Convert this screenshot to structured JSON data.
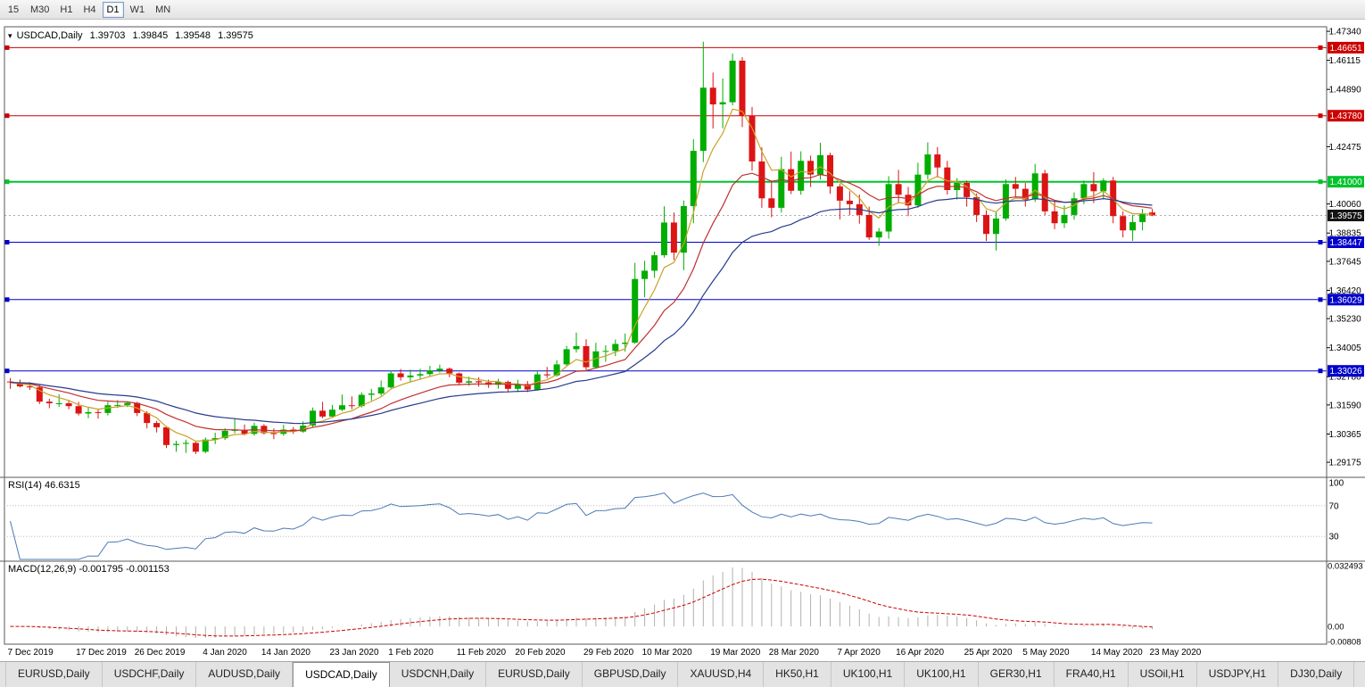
{
  "toolbar": {
    "timeframes": [
      "15",
      "M30",
      "H1",
      "H4",
      "D1",
      "W1",
      "MN"
    ],
    "active": "D1"
  },
  "chart_title": {
    "symbol": "USDCAD,Daily",
    "open": "1.39703",
    "high": "1.39845",
    "low": "1.39548",
    "close": "1.39575"
  },
  "chart_data": {
    "type": "candlestick",
    "symbol": "USDCAD",
    "period": "Daily",
    "colors": {
      "up": "#00ad00",
      "down": "#dc1414",
      "background": "#ffffff",
      "frame": "#5a5a5a",
      "axis_text": "#000000",
      "current_price_tag": "#141414",
      "grid_dotted": "#aaaaaa"
    },
    "price_axis": {
      "min": 1.2854,
      "max": 1.4753,
      "current_price": "1.39575",
      "current_price_value": 1.39575,
      "ticks": [
        "1.47340",
        "1.46115",
        "1.44890",
        "1.42475",
        "1.40060",
        "1.38835",
        "1.37645",
        "1.36420",
        "1.35230",
        "1.34005",
        "1.32780",
        "1.31590",
        "1.30365",
        "1.29175"
      ]
    },
    "sr_lines": [
      {
        "value": 1.46651,
        "label": "1.46651",
        "color": "#cc0000",
        "width": 1
      },
      {
        "value": 1.4378,
        "label": "1.43780",
        "color": "#cc0000",
        "width": 1
      },
      {
        "value": 1.41,
        "label": "1.41000",
        "color": "#00c22e",
        "width": 2
      },
      {
        "value": 1.38447,
        "label": "1.38447",
        "color": "#0000cc",
        "width": 1
      },
      {
        "value": 1.36029,
        "label": "1.36029",
        "color": "#0000cc",
        "width": 1
      },
      {
        "value": 1.33026,
        "label": "1.33026",
        "color": "#0000cc",
        "width": 1
      }
    ],
    "x_labels": [
      {
        "text": "7 Dec 2019",
        "bar": 0
      },
      {
        "text": "17 Dec 2019",
        "bar": 7
      },
      {
        "text": "26 Dec 2019",
        "bar": 13
      },
      {
        "text": "4 Jan 2020",
        "bar": 20
      },
      {
        "text": "14 Jan 2020",
        "bar": 26
      },
      {
        "text": "23 Jan 2020",
        "bar": 33
      },
      {
        "text": "1 Feb 2020",
        "bar": 39
      },
      {
        "text": "11 Feb 2020",
        "bar": 46
      },
      {
        "text": "20 Feb 2020",
        "bar": 52
      },
      {
        "text": "29 Feb 2020",
        "bar": 59
      },
      {
        "text": "10 Mar 2020",
        "bar": 65
      },
      {
        "text": "19 Mar 2020",
        "bar": 72
      },
      {
        "text": "28 Mar 2020",
        "bar": 78
      },
      {
        "text": "7 Apr 2020",
        "bar": 85
      },
      {
        "text": "16 Apr 2020",
        "bar": 91
      },
      {
        "text": "25 Apr 2020",
        "bar": 98
      },
      {
        "text": "5 May 2020",
        "bar": 104
      },
      {
        "text": "14 May 2020",
        "bar": 111
      },
      {
        "text": "23 May 2020",
        "bar": 117
      }
    ],
    "candles": [
      [
        1.3258,
        1.3272,
        1.3227,
        1.3254
      ],
      [
        1.3254,
        1.3266,
        1.3233,
        1.3237
      ],
      [
        1.3237,
        1.3255,
        1.3222,
        1.3233
      ],
      [
        1.3233,
        1.3245,
        1.3163,
        1.3173
      ],
      [
        1.3173,
        1.3185,
        1.3145,
        1.3166
      ],
      [
        1.3166,
        1.3204,
        1.3151,
        1.3166
      ],
      [
        1.3166,
        1.318,
        1.3141,
        1.3154
      ],
      [
        1.3154,
        1.3172,
        1.3115,
        1.3123
      ],
      [
        1.3123,
        1.315,
        1.3103,
        1.3129
      ],
      [
        1.3129,
        1.314,
        1.3101,
        1.3125
      ],
      [
        1.3125,
        1.3172,
        1.3115,
        1.3158
      ],
      [
        1.3158,
        1.318,
        1.3146,
        1.3159
      ],
      [
        1.3159,
        1.3174,
        1.315,
        1.3168
      ],
      [
        1.3168,
        1.3172,
        1.3112,
        1.3125
      ],
      [
        1.3125,
        1.3133,
        1.306,
        1.3083
      ],
      [
        1.3083,
        1.3092,
        1.3043,
        1.3065
      ],
      [
        1.3065,
        1.307,
        1.2977,
        1.299
      ],
      [
        1.299,
        1.3008,
        1.2962,
        1.2995
      ],
      [
        1.2995,
        1.3013,
        1.2957,
        1.2999
      ],
      [
        1.2999,
        1.3004,
        1.2952,
        1.2962
      ],
      [
        1.2962,
        1.3022,
        1.2955,
        1.3013
      ],
      [
        1.3013,
        1.3042,
        1.2994,
        1.3019
      ],
      [
        1.3019,
        1.3061,
        1.3012,
        1.305
      ],
      [
        1.305,
        1.3103,
        1.304,
        1.3054
      ],
      [
        1.3054,
        1.3077,
        1.3031,
        1.3037
      ],
      [
        1.3037,
        1.3084,
        1.303,
        1.3071
      ],
      [
        1.3071,
        1.3078,
        1.3035,
        1.304
      ],
      [
        1.304,
        1.306,
        1.3015,
        1.3037
      ],
      [
        1.3037,
        1.3075,
        1.3029,
        1.3055
      ],
      [
        1.3055,
        1.3066,
        1.3037,
        1.3047
      ],
      [
        1.3047,
        1.309,
        1.3042,
        1.3072
      ],
      [
        1.3072,
        1.3148,
        1.3066,
        1.3135
      ],
      [
        1.3135,
        1.3172,
        1.3103,
        1.311
      ],
      [
        1.311,
        1.3159,
        1.3104,
        1.3139
      ],
      [
        1.3139,
        1.3203,
        1.3133,
        1.3158
      ],
      [
        1.3158,
        1.3195,
        1.3141,
        1.3154
      ],
      [
        1.3154,
        1.3212,
        1.3148,
        1.3202
      ],
      [
        1.3202,
        1.3227,
        1.3177,
        1.3207
      ],
      [
        1.3207,
        1.3262,
        1.3198,
        1.3233
      ],
      [
        1.3233,
        1.3303,
        1.3229,
        1.3292
      ],
      [
        1.3292,
        1.3311,
        1.3262,
        1.3276
      ],
      [
        1.3276,
        1.3308,
        1.3254,
        1.3283
      ],
      [
        1.3283,
        1.3312,
        1.3267,
        1.3289
      ],
      [
        1.3289,
        1.3324,
        1.3277,
        1.3304
      ],
      [
        1.3304,
        1.3329,
        1.3296,
        1.3312
      ],
      [
        1.3312,
        1.3317,
        1.3276,
        1.3292
      ],
      [
        1.3292,
        1.3296,
        1.3242,
        1.3253
      ],
      [
        1.3253,
        1.3278,
        1.324,
        1.3259
      ],
      [
        1.3259,
        1.3276,
        1.3236,
        1.3254
      ],
      [
        1.3254,
        1.3266,
        1.3231,
        1.3244
      ],
      [
        1.3244,
        1.3269,
        1.3227,
        1.3256
      ],
      [
        1.3256,
        1.3262,
        1.3212,
        1.3227
      ],
      [
        1.3227,
        1.3265,
        1.3213,
        1.3247
      ],
      [
        1.3247,
        1.326,
        1.3213,
        1.3224
      ],
      [
        1.3224,
        1.3302,
        1.3219,
        1.3288
      ],
      [
        1.3288,
        1.3319,
        1.3272,
        1.3284
      ],
      [
        1.3284,
        1.3348,
        1.3278,
        1.333
      ],
      [
        1.333,
        1.3408,
        1.3322,
        1.3394
      ],
      [
        1.3394,
        1.3464,
        1.338,
        1.3407
      ],
      [
        1.3407,
        1.3436,
        1.3305,
        1.3318
      ],
      [
        1.3318,
        1.3421,
        1.3312,
        1.3385
      ],
      [
        1.3385,
        1.3411,
        1.3341,
        1.3387
      ],
      [
        1.3387,
        1.3435,
        1.3365,
        1.3416
      ],
      [
        1.3416,
        1.346,
        1.3384,
        1.3422
      ],
      [
        1.3422,
        1.3758,
        1.3416,
        1.369
      ],
      [
        1.369,
        1.3767,
        1.3613,
        1.3725
      ],
      [
        1.3725,
        1.3805,
        1.3695,
        1.379
      ],
      [
        1.379,
        1.3996,
        1.378,
        1.3928
      ],
      [
        1.3928,
        1.397,
        1.377,
        1.3801
      ],
      [
        1.3801,
        1.4021,
        1.3727,
        1.3997
      ],
      [
        1.3997,
        1.4279,
        1.3925,
        1.423
      ],
      [
        1.423,
        1.469,
        1.4183,
        1.4496
      ],
      [
        1.4496,
        1.456,
        1.4324,
        1.4426
      ],
      [
        1.4426,
        1.4535,
        1.4325,
        1.4435
      ],
      [
        1.4435,
        1.464,
        1.4422,
        1.461
      ],
      [
        1.461,
        1.4625,
        1.433,
        1.4378
      ],
      [
        1.4378,
        1.4415,
        1.4147,
        1.4185
      ],
      [
        1.4185,
        1.4245,
        1.399,
        1.403
      ],
      [
        1.403,
        1.4105,
        1.395,
        1.399
      ],
      [
        1.399,
        1.4205,
        1.397,
        1.4153
      ],
      [
        1.4153,
        1.4227,
        1.4048,
        1.4062
      ],
      [
        1.4062,
        1.4228,
        1.4045,
        1.4188
      ],
      [
        1.4188,
        1.421,
        1.4078,
        1.413
      ],
      [
        1.413,
        1.4264,
        1.4109,
        1.4212
      ],
      [
        1.4212,
        1.4222,
        1.4049,
        1.408
      ],
      [
        1.408,
        1.409,
        1.3941,
        1.402
      ],
      [
        1.402,
        1.406,
        1.3959,
        1.4005
      ],
      [
        1.4005,
        1.4046,
        1.3923,
        1.396
      ],
      [
        1.396,
        1.3995,
        1.3855,
        1.3865
      ],
      [
        1.3865,
        1.3905,
        1.383,
        1.389
      ],
      [
        1.389,
        1.4123,
        1.386,
        1.409
      ],
      [
        1.409,
        1.415,
        1.401,
        1.4045
      ],
      [
        1.4045,
        1.4078,
        1.3955,
        1.4
      ],
      [
        1.4,
        1.418,
        1.399,
        1.413
      ],
      [
        1.413,
        1.4266,
        1.411,
        1.4215
      ],
      [
        1.4215,
        1.4246,
        1.4118,
        1.416
      ],
      [
        1.416,
        1.4188,
        1.4046,
        1.4065
      ],
      [
        1.4065,
        1.4115,
        1.4025,
        1.4095
      ],
      [
        1.4095,
        1.4105,
        1.3995,
        1.4035
      ],
      [
        1.4035,
        1.405,
        1.393,
        1.396
      ],
      [
        1.396,
        1.398,
        1.385,
        1.388
      ],
      [
        1.388,
        1.3975,
        1.381,
        1.3945
      ],
      [
        1.3945,
        1.411,
        1.3935,
        1.409
      ],
      [
        1.409,
        1.412,
        1.4035,
        1.407
      ],
      [
        1.407,
        1.4095,
        1.3995,
        1.4025
      ],
      [
        1.4025,
        1.4175,
        1.4015,
        1.4135
      ],
      [
        1.4135,
        1.415,
        1.396,
        1.3975
      ],
      [
        1.3975,
        1.402,
        1.39,
        1.3925
      ],
      [
        1.3925,
        1.4,
        1.3905,
        1.396
      ],
      [
        1.396,
        1.4055,
        1.394,
        1.403
      ],
      [
        1.403,
        1.4105,
        1.4005,
        1.409
      ],
      [
        1.409,
        1.414,
        1.401,
        1.406
      ],
      [
        1.406,
        1.4115,
        1.4025,
        1.4105
      ],
      [
        1.4105,
        1.412,
        1.3925,
        1.3955
      ],
      [
        1.3955,
        1.3975,
        1.3865,
        1.3895
      ],
      [
        1.3895,
        1.396,
        1.385,
        1.393
      ],
      [
        1.393,
        1.3985,
        1.3895,
        1.3965
      ],
      [
        1.39703,
        1.39845,
        1.39548,
        1.39575
      ]
    ],
    "overlays": [
      {
        "name": "ma-fast",
        "period": 5,
        "color": "#c9a227"
      },
      {
        "name": "ma-medium",
        "period": 13,
        "color": "#c03030"
      },
      {
        "name": "ma-slow",
        "period": 26,
        "color": "#283c8c"
      }
    ],
    "indicators": {
      "rsi": {
        "label": "RSI(14) 46.6315",
        "period": 14,
        "value": 46.6315,
        "color": "#4a7ab5",
        "levels": [
          70,
          30
        ],
        "range": [
          0,
          100
        ],
        "scale_ticks": [
          {
            "text": "100",
            "value": 100
          },
          {
            "text": "70",
            "value": 70
          },
          {
            "text": "30",
            "value": 30
          }
        ]
      },
      "macd": {
        "label": "MACD(12,26,9) -0.001795 -0.001153",
        "fast": 12,
        "slow": 26,
        "signal_period": 9,
        "macd_value": -0.001795,
        "signal_value": -0.001153,
        "max": 0.032493,
        "min": -0.00808,
        "histogram_color": "#b0b0b0",
        "signal_color": "#cc0000",
        "scale_ticks": [
          {
            "text": "0.032493",
            "value": 0.032493
          },
          {
            "text": "0.00",
            "value": 0
          },
          {
            "text": "-0.00808",
            "value": -0.00808
          }
        ]
      }
    }
  },
  "tabs": [
    {
      "label": "EURUSD,Daily"
    },
    {
      "label": "USDCHF,Daily"
    },
    {
      "label": "AUDUSD,Daily"
    },
    {
      "label": "USDCAD,Daily",
      "active": true
    },
    {
      "label": "USDCNH,Daily"
    },
    {
      "label": "EURUSD,Daily"
    },
    {
      "label": "GBPUSD,Daily"
    },
    {
      "label": "XAUUSD,H4"
    },
    {
      "label": "HK50,H1"
    },
    {
      "label": "UK100,H1"
    },
    {
      "label": "UK100,H1"
    },
    {
      "label": "GER30,H1"
    },
    {
      "label": "FRA40,H1"
    },
    {
      "label": "USOil,H1"
    },
    {
      "label": "USDJPY,H1"
    },
    {
      "label": "DJ30,Daily"
    }
  ]
}
